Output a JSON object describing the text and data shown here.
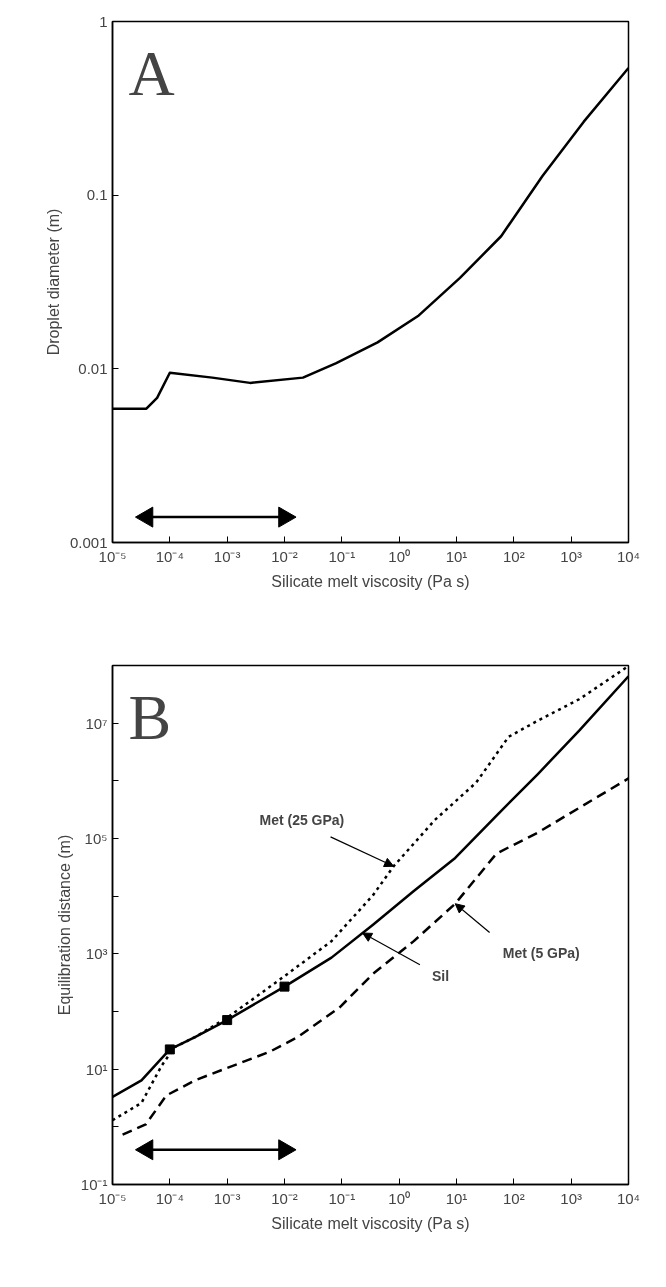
{
  "chart_data": [
    {
      "type": "line",
      "xlabel": "Silicate melt viscosity (Pa s)",
      "ylabel": "Droplet diameter (m)",
      "log": "xy",
      "grid": false,
      "xlim": [
        1e-05,
        10000.0
      ],
      "ylim": [
        0.001,
        1
      ],
      "xticks": [
        {
          "value": 1e-05,
          "label": "10⁻⁵"
        },
        {
          "value": 0.0001,
          "label": "10⁻⁴"
        },
        {
          "value": 0.001,
          "label": "10⁻³"
        },
        {
          "value": 0.01,
          "label": "10⁻²"
        },
        {
          "value": 0.1,
          "label": "10⁻¹"
        },
        {
          "value": 1,
          "label": "10⁰"
        },
        {
          "value": 10,
          "label": "10¹"
        },
        {
          "value": 100,
          "label": "10²"
        },
        {
          "value": 1000,
          "label": "10³"
        },
        {
          "value": 10000,
          "label": "10⁴"
        }
      ],
      "yticks": [
        0.001,
        0.01,
        0.1,
        1
      ],
      "annotations": [
        "A"
      ],
      "series": [
        {
          "color": "#000000",
          "line_style": "solid",
          "x": [
            1e-05,
            3.9e-05,
            6e-05,
            0.0001,
            0.00055,
            0.0025,
            0.021,
            0.08,
            0.42,
            2.2,
            11.5,
            60,
            316,
            1660,
            10000
          ],
          "values": [
            0.0059,
            0.0059,
            0.0068,
            0.0095,
            0.0089,
            0.0083,
            0.0089,
            0.0108,
            0.0142,
            0.0203,
            0.0334,
            0.058,
            0.129,
            0.265,
            0.54
          ]
        },
        {
          "color": "#000000",
          "line_style": "solid",
          "marker": "triangle",
          "x": [
            4e-05,
            0.01
          ],
          "values": [
            0.0014,
            0.0014
          ]
        }
      ]
    },
    {
      "type": "line",
      "xlabel": "Silicate melt viscosity (Pa s)",
      "ylabel": "Equilibration distance (m)",
      "log": "xy",
      "grid": false,
      "xlim": [
        1e-05,
        10000.0
      ],
      "ylim": [
        0.1,
        100000000.0
      ],
      "xticks": [
        {
          "value": 1e-05,
          "label": "10⁻⁵"
        },
        {
          "value": 0.0001,
          "label": "10⁻⁴"
        },
        {
          "value": 0.001,
          "label": "10⁻³"
        },
        {
          "value": 0.01,
          "label": "10⁻²"
        },
        {
          "value": 0.1,
          "label": "10⁻¹"
        },
        {
          "value": 1,
          "label": "10⁰"
        },
        {
          "value": 10,
          "label": "10¹"
        },
        {
          "value": 100,
          "label": "10²"
        },
        {
          "value": 1000,
          "label": "10³"
        },
        {
          "value": 10000,
          "label": "10⁴"
        }
      ],
      "yticks": [
        {
          "value": 0.1,
          "label": "10⁻¹"
        },
        {
          "value": 1,
          "label": null
        },
        {
          "value": 10,
          "label": "10¹"
        },
        {
          "value": 100,
          "label": null
        },
        {
          "value": 1000,
          "label": "10³"
        },
        {
          "value": 10000,
          "label": null
        },
        {
          "value": 100000,
          "label": "10⁵"
        },
        {
          "value": 1000000,
          "label": null
        },
        {
          "value": 10000000,
          "label": "10⁷"
        }
      ],
      "annotations": [
        "B",
        {
          "text": "Met (25 GPa)",
          "x": 0.8,
          "y": 33000
        },
        {
          "text": "Sil",
          "x": 0.23,
          "y": 2300
        },
        {
          "text": "Met (5 GPa)",
          "x": 9.5,
          "y": 7400
        }
      ],
      "series": [
        {
          "color": "#000000",
          "line_style": "solid",
          "x": [
            1e-05,
            3.2e-05,
            0.0001,
            0.000275,
            0.001,
            0.01,
            0.066,
            0.35,
            1.8,
            9.5,
            50,
            260,
            1380,
            10000
          ],
          "values": [
            3.3,
            6.4,
            22,
            36,
            71,
            270,
            860,
            3200,
            12300,
            46000,
            250000,
            1300000,
            7400000,
            65000000
          ]
        },
        {
          "color": "#000000",
          "line_style": "dotted",
          "x": [
            1e-05,
            3.2e-05,
            7.2e-05,
            0.00012,
            0.000275,
            0.001,
            0.01,
            0.066,
            0.35,
            0.8,
            4.2,
            22,
            81,
            260,
            1380,
            10000
          ],
          "values": [
            1.3,
            2.6,
            11.5,
            24,
            36,
            78,
            410,
            1660,
            10400,
            33000,
            210000,
            930000,
            5800000,
            11000000,
            26000000,
            98000000
          ]
        },
        {
          "color": "#000000",
          "line_style": "dashed",
          "x": [
            1.5e-05,
            3.8e-05,
            8.7e-05,
            0.000275,
            0.001,
            0.0055,
            0.017,
            0.091,
            0.35,
            1.8,
            9.5,
            50,
            260,
            1380,
            10000
          ],
          "values": [
            0.73,
            1.1,
            3.5,
            6.4,
            10.5,
            20,
            36,
            117,
            450,
            1660,
            7400,
            55000,
            126000,
            340000,
            1100000
          ]
        },
        {
          "type": "scatter",
          "color": "#000000",
          "marker": "square",
          "x": [
            0.0001,
            0.001,
            0.01
          ],
          "values": [
            22,
            71,
            270
          ]
        },
        {
          "color": "#000000",
          "line_style": "solid",
          "marker": "triangle",
          "x": [
            4e-05,
            0.01
          ],
          "values": [
            0.4,
            0.4
          ]
        }
      ]
    }
  ]
}
